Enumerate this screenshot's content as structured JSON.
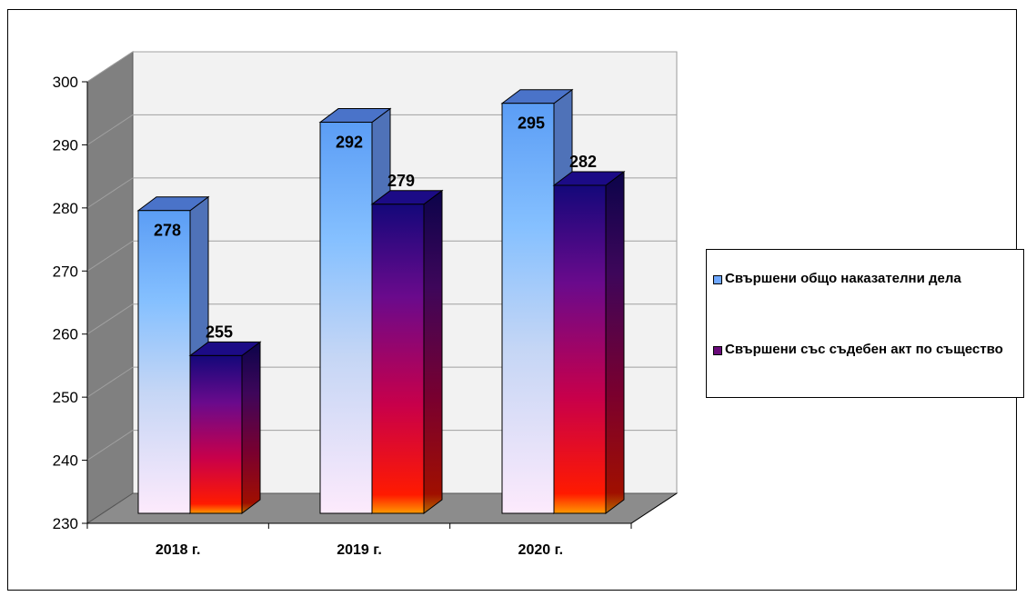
{
  "chart_data": {
    "type": "bar",
    "categories": [
      "2018 г.",
      "2019 г.",
      "2020 г."
    ],
    "series": [
      {
        "name": "Свършени общо наказателни дела",
        "values": [
          278,
          292,
          295
        ],
        "color": "#6fa8ff"
      },
      {
        "name": "Свършени със съдебен акт по същество",
        "values": [
          255,
          279,
          282
        ],
        "color": "#6a0a7a"
      }
    ],
    "ylim": [
      230,
      300
    ],
    "yticks": [
      "230",
      "240",
      "250",
      "260",
      "270",
      "280",
      "290",
      "300"
    ],
    "title": "",
    "xlabel": "",
    "ylabel": "",
    "grid": true,
    "legend_position": "right",
    "colors": {
      "wall": "#f2f2f2",
      "floor": "#8c8c8c",
      "side_wall": "#808080"
    }
  }
}
